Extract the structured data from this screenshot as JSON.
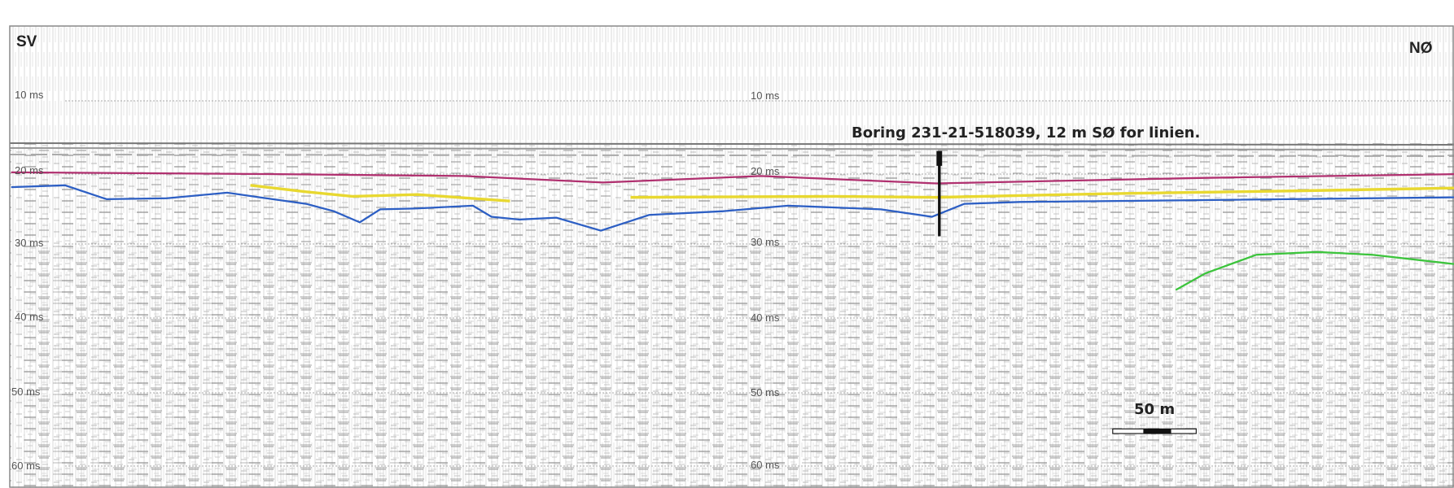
{
  "profile": {
    "direction_left": "SV",
    "direction_right": "NØ",
    "time_labels_left": [
      "10 ms",
      "20 ms",
      "30 ms",
      "40 ms",
      "50 ms",
      "60 ms"
    ],
    "time_labels_middle": [
      "10 ms",
      "20 ms",
      "30 ms",
      "40 ms",
      "50 ms",
      "60 ms"
    ],
    "annotation": "Boring 231-21-518039, 12 m SØ for linien.",
    "scale_bar": "50 m"
  }
}
